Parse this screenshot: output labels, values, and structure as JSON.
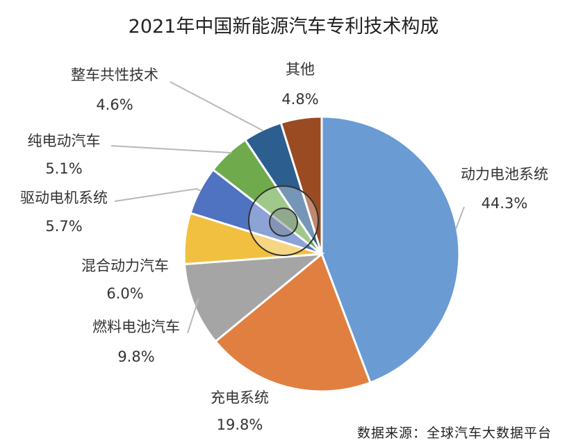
{
  "title": "2021年中国新能源汽车专利技术构成",
  "source": "数据来源：全球汽车大数据平台",
  "chart_data": {
    "type": "pie",
    "title": "2021年中国新能源汽车专利技术构成",
    "categories": [
      "动力电池系统",
      "充电系统",
      "燃料电池汽车",
      "混合动力汽车",
      "驱动电机系统",
      "纯电动汽车",
      "整车共性技术",
      "其他"
    ],
    "values": [
      44.3,
      19.8,
      9.8,
      6.0,
      5.7,
      5.1,
      4.6,
      4.8
    ],
    "value_labels": [
      "44.3%",
      "19.8%",
      "9.8%",
      "6.0%",
      "5.7%",
      "5.1%",
      "4.6%",
      "4.8%"
    ],
    "colors": [
      "#6a9bd3",
      "#e17f40",
      "#a5a5a5",
      "#f2c040",
      "#4f72c1",
      "#6fab4d",
      "#2c5e8f",
      "#9b4b22"
    ],
    "legend": "none"
  }
}
